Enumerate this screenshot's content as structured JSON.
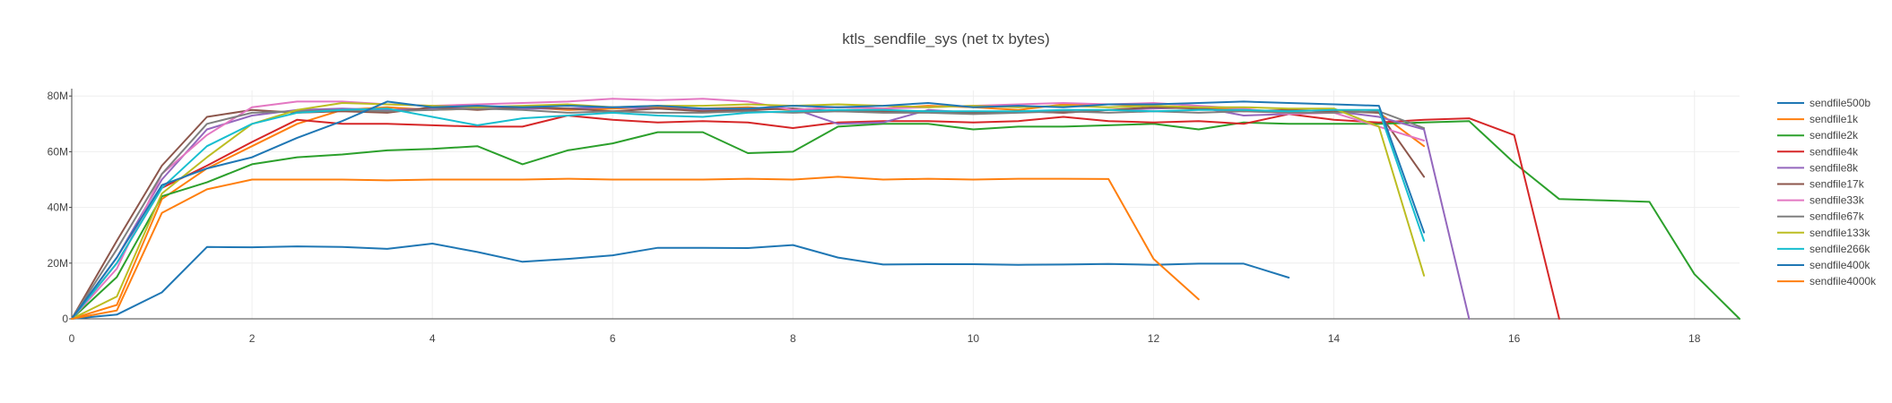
{
  "chart_data": {
    "type": "line",
    "title": "ktls_sendfile_sys (net tx bytes)",
    "xlabel": "",
    "ylabel": "",
    "xlim": [
      0,
      18.5
    ],
    "ylim": [
      0,
      82000000
    ],
    "x_ticks": [
      0,
      2,
      4,
      6,
      8,
      10,
      12,
      14,
      16,
      18
    ],
    "x_tick_labels": [
      "0",
      "2",
      "4",
      "6",
      "8",
      "10",
      "12",
      "14",
      "16",
      "18"
    ],
    "y_ticks": [
      0,
      20000000,
      40000000,
      60000000,
      80000000
    ],
    "y_tick_labels": [
      "0",
      "20M",
      "40M",
      "60M",
      "80M"
    ],
    "grid": true,
    "legend_position": "right",
    "series": [
      {
        "name": "sendfile500b",
        "color": "#1f77b4",
        "x": [
          0,
          0.5,
          1,
          1.5,
          2,
          2.5,
          3,
          3.5,
          4,
          4.5,
          5,
          5.5,
          6,
          6.5,
          7,
          7.5,
          8,
          8.5,
          9,
          9.5,
          10,
          10.5,
          11,
          11.5,
          12,
          12.5,
          13,
          13.5
        ],
        "y": [
          0,
          1500000,
          9500000,
          25800000,
          25700000,
          26000000,
          25800000,
          25100000,
          27000000,
          24000000,
          20500000,
          21500000,
          22800000,
          25500000,
          25500000,
          25400000,
          26500000,
          22000000,
          19500000,
          19600000,
          19600000,
          19400000,
          19500000,
          19700000,
          19400000,
          19800000,
          19800000,
          14800000
        ]
      },
      {
        "name": "sendfile1k",
        "color": "#ff7f0e",
        "x": [
          0,
          0.5,
          1,
          1.5,
          2,
          2.5,
          3,
          3.5,
          4,
          4.5,
          5,
          5.5,
          6,
          6.5,
          7,
          7.5,
          8,
          8.5,
          9,
          9.5,
          10,
          10.5,
          11,
          11.5,
          12,
          12.5,
          13,
          13.5,
          14,
          14.5,
          15
        ],
        "y": [
          0,
          5000000,
          43000000,
          54000000,
          62000000,
          70000000,
          75000000,
          76000000,
          75000000,
          75500000,
          76000000,
          75000000,
          75500000,
          76000000,
          75500000,
          76000000,
          75000000,
          76000000,
          75500000,
          76500000,
          76000000,
          75000000,
          77000000,
          77000000,
          76500000,
          76000000,
          75000000,
          74500000,
          75000000,
          74000000,
          62000000
        ]
      },
      {
        "name": "sendfile2k",
        "color": "#2ca02c",
        "x": [
          0,
          0.5,
          1,
          1.5,
          2,
          2.5,
          3,
          3.5,
          4,
          4.5,
          5,
          5.5,
          6,
          6.5,
          7,
          7.5,
          8,
          8.5,
          9,
          9.5,
          10,
          10.5,
          11,
          11.5,
          12,
          12.5,
          13,
          13.5,
          14,
          14.5,
          15,
          15.5,
          16,
          16.5,
          17,
          17.5,
          18,
          18.5
        ],
        "y": [
          0,
          15000000,
          44000000,
          49000000,
          55500000,
          58000000,
          59000000,
          60500000,
          61000000,
          62000000,
          55500000,
          60500000,
          63000000,
          67000000,
          67000000,
          59500000,
          60000000,
          69000000,
          70000000,
          70000000,
          68000000,
          69000000,
          69000000,
          69500000,
          70000000,
          68000000,
          70500000,
          70000000,
          70000000,
          70000000,
          70500000,
          71000000,
          56000000,
          43000000,
          42500000,
          42000000,
          16000000,
          0
        ]
      },
      {
        "name": "sendfile4k",
        "color": "#d62728",
        "x": [
          0,
          0.5,
          1,
          1.5,
          2,
          2.5,
          3,
          3.5,
          4,
          4.5,
          5,
          5.5,
          6,
          6.5,
          7,
          7.5,
          8,
          8.5,
          9,
          9.5,
          10,
          10.5,
          11,
          11.5,
          12,
          12.5,
          13,
          13.5,
          14,
          14.5,
          15,
          15.5,
          16,
          16.5
        ],
        "y": [
          0,
          20000000,
          47000000,
          55000000,
          63500000,
          71500000,
          70000000,
          70000000,
          69500000,
          69000000,
          69000000,
          73000000,
          71500000,
          70500000,
          71000000,
          70500000,
          68500000,
          70500000,
          71000000,
          71000000,
          70500000,
          71000000,
          72500000,
          71000000,
          70500000,
          71000000,
          70000000,
          73500000,
          71500000,
          70500000,
          71500000,
          72000000,
          66000000,
          0
        ]
      },
      {
        "name": "sendfile8k",
        "color": "#9467bd",
        "x": [
          0,
          0.5,
          1,
          1.5,
          2,
          2.5,
          3,
          3.5,
          4,
          4.5,
          5,
          5.5,
          6,
          6.5,
          7,
          7.5,
          8,
          8.5,
          9,
          9.5,
          10,
          10.5,
          11,
          11.5,
          12,
          12.5,
          13,
          13.5,
          14,
          14.5,
          15,
          15.5
        ],
        "y": [
          0,
          22000000,
          50000000,
          68000000,
          73000000,
          75000000,
          75500000,
          75000000,
          75500000,
          76000000,
          75500000,
          75500000,
          76000000,
          75500000,
          75000000,
          75500000,
          75500000,
          70000000,
          70500000,
          75000000,
          74000000,
          74500000,
          74000000,
          75000000,
          75500000,
          76000000,
          73000000,
          73500000,
          74500000,
          72500000,
          68000000,
          0
        ]
      },
      {
        "name": "sendfile17k",
        "color": "#8c564b",
        "x": [
          0,
          0.5,
          1,
          1.5,
          2,
          2.5,
          3,
          3.5,
          4,
          4.5,
          5,
          5.5,
          6,
          6.5,
          7,
          7.5,
          8,
          8.5,
          9,
          9.5,
          10,
          10.5,
          11,
          11.5,
          12,
          12.5,
          13,
          13.5,
          14,
          14.5,
          15
        ],
        "y": [
          0,
          28000000,
          55000000,
          72500000,
          75000000,
          74000000,
          74500000,
          74000000,
          76000000,
          75000000,
          76000000,
          75500000,
          74500000,
          75500000,
          74500000,
          75000000,
          75500000,
          74500000,
          74500000,
          74500000,
          74000000,
          74500000,
          74000000,
          75000000,
          76000000,
          75500000,
          74500000,
          75000000,
          74500000,
          74000000,
          51000000
        ]
      },
      {
        "name": "sendfile33k",
        "color": "#e377c2",
        "x": [
          0,
          0.5,
          1,
          1.5,
          2,
          2.5,
          3,
          3.5,
          4,
          4.5,
          5,
          5.5,
          6,
          6.5,
          7,
          7.5,
          8,
          8.5,
          9,
          9.5,
          10,
          10.5,
          11,
          11.5,
          12,
          12.5,
          13,
          13.5,
          14,
          14.5,
          15
        ],
        "y": [
          0,
          18000000,
          52000000,
          66000000,
          76000000,
          78000000,
          78000000,
          77000000,
          76500000,
          77000000,
          77500000,
          78000000,
          79000000,
          78500000,
          79000000,
          78000000,
          75000000,
          76000000,
          75500000,
          76000000,
          76500000,
          77000000,
          77500000,
          77000000,
          77500000,
          76500000,
          75500000,
          73500000,
          74000000,
          69000000,
          64000000
        ]
      },
      {
        "name": "sendfile67k",
        "color": "#7f7f7f",
        "x": [
          0,
          0.5,
          1,
          1.5,
          2,
          2.5,
          3,
          3.5,
          4,
          4.5,
          5,
          5.5,
          6,
          6.5,
          7,
          7.5,
          8,
          8.5,
          9,
          9.5,
          10,
          10.5,
          11,
          11.5,
          12,
          12.5,
          13,
          13.5,
          14,
          14.5,
          15
        ],
        "y": [
          0,
          25000000,
          52000000,
          70000000,
          74000000,
          74500000,
          75000000,
          74500000,
          75000000,
          75500000,
          75000000,
          74000000,
          74500000,
          74000000,
          74000000,
          74500000,
          74000000,
          74500000,
          74000000,
          74000000,
          73500000,
          74000000,
          74500000,
          74000000,
          74500000,
          74000000,
          74500000,
          74000000,
          74000000,
          74500000,
          68500000
        ]
      },
      {
        "name": "sendfile133k",
        "color": "#bcbd22",
        "x": [
          0,
          0.5,
          1,
          1.5,
          2,
          2.5,
          3,
          3.5,
          4,
          4.5,
          5,
          5.5,
          6,
          6.5,
          7,
          7.5,
          8,
          8.5,
          9,
          9.5,
          10,
          10.5,
          11,
          11.5,
          12,
          12.5,
          13,
          13.5,
          14,
          14.5,
          15
        ],
        "y": [
          0,
          8000000,
          45000000,
          58000000,
          70000000,
          75000000,
          77500000,
          77000000,
          76500000,
          76000000,
          76500000,
          77000000,
          76000000,
          76500000,
          76500000,
          77000000,
          76500000,
          77000000,
          76500000,
          76000000,
          76500000,
          76000000,
          76500000,
          76000000,
          76500000,
          76000000,
          76000000,
          75500000,
          75500000,
          69000000,
          15500000
        ]
      },
      {
        "name": "sendfile266k",
        "color": "#17becf",
        "x": [
          0,
          0.5,
          1,
          1.5,
          2,
          2.5,
          3,
          3.5,
          4,
          4.5,
          5,
          5.5,
          6,
          6.5,
          7,
          7.5,
          8,
          8.5,
          9,
          9.5,
          10,
          10.5,
          11,
          11.5,
          12,
          12.5,
          13,
          13.5,
          14,
          14.5,
          15
        ],
        "y": [
          0,
          20000000,
          47000000,
          62000000,
          70000000,
          74000000,
          75000000,
          75500000,
          72500000,
          69500000,
          72000000,
          73000000,
          74000000,
          73000000,
          72500000,
          74000000,
          74500000,
          75000000,
          75000000,
          74500000,
          74500000,
          74500000,
          75000000,
          75000000,
          74500000,
          75000000,
          75000000,
          74500000,
          75000000,
          75000000,
          28000000
        ]
      },
      {
        "name": "sendfile400k",
        "color": "#1f77b4",
        "x": [
          0,
          0.5,
          1,
          1.5,
          2,
          2.5,
          3,
          3.5,
          4,
          4.5,
          5,
          5.5,
          6,
          6.5,
          7,
          7.5,
          8,
          8.5,
          9,
          9.5,
          10,
          10.5,
          11,
          11.5,
          12,
          12.5,
          13,
          13.5,
          14,
          14.5,
          15
        ],
        "y": [
          0,
          22000000,
          48000000,
          54000000,
          58000000,
          65000000,
          71000000,
          78000000,
          76000000,
          76500000,
          76000000,
          76500000,
          76000000,
          76500000,
          75500000,
          75500000,
          76500000,
          76000000,
          76500000,
          77500000,
          76000000,
          76500000,
          76000000,
          77000000,
          77000000,
          77500000,
          78000000,
          77500000,
          77000000,
          76500000,
          31000000
        ]
      },
      {
        "name": "sendfile4000k",
        "color": "#ff7f0e",
        "x": [
          0,
          0.5,
          1,
          1.5,
          2,
          2.5,
          3,
          3.5,
          4,
          4.5,
          5,
          5.5,
          6,
          6.5,
          7,
          7.5,
          8,
          8.5,
          9,
          9.5,
          10,
          10.5,
          11,
          11.5,
          12,
          12.5
        ],
        "y": [
          0,
          3000000,
          38000000,
          46500000,
          50000000,
          50000000,
          50000000,
          49700000,
          50000000,
          50000000,
          50000000,
          50300000,
          50000000,
          50000000,
          50000000,
          50300000,
          50000000,
          51000000,
          50000000,
          50300000,
          50000000,
          50300000,
          50300000,
          50200000,
          21500000,
          7000000
        ]
      }
    ]
  }
}
